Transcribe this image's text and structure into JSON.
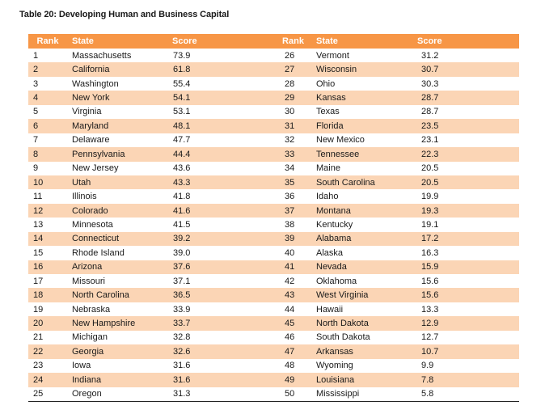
{
  "title": "Table 20: Developing Human and Business Capital",
  "columns": [
    "Rank",
    "State",
    "Score",
    "Rank",
    "State",
    "Score"
  ],
  "rows": [
    [
      "1",
      "Massachusetts",
      "73.9",
      "26",
      "Vermont",
      "31.2"
    ],
    [
      "2",
      "California",
      "61.8",
      "27",
      "Wisconsin",
      "30.7"
    ],
    [
      "3",
      "Washington",
      "55.4",
      "28",
      "Ohio",
      "30.3"
    ],
    [
      "4",
      "New York",
      "54.1",
      "29",
      "Kansas",
      "28.7"
    ],
    [
      "5",
      "Virginia",
      "53.1",
      "30",
      "Texas",
      "28.7"
    ],
    [
      "6",
      "Maryland",
      "48.1",
      "31",
      "Florida",
      "23.5"
    ],
    [
      "7",
      "Delaware",
      "47.7",
      "32",
      "New Mexico",
      "23.1"
    ],
    [
      "8",
      "Pennsylvania",
      "44.4",
      "33",
      "Tennessee",
      "22.3"
    ],
    [
      "9",
      "New Jersey",
      "43.6",
      "34",
      "Maine",
      "20.5"
    ],
    [
      "10",
      "Utah",
      "43.3",
      "35",
      "South Carolina",
      "20.5"
    ],
    [
      "11",
      "Illinois",
      "41.8",
      "36",
      "Idaho",
      "19.9"
    ],
    [
      "12",
      "Colorado",
      "41.6",
      "37",
      "Montana",
      "19.3"
    ],
    [
      "13",
      "Minnesota",
      "41.5",
      "38",
      "Kentucky",
      "19.1"
    ],
    [
      "14",
      "Connecticut",
      "39.2",
      "39",
      "Alabama",
      "17.2"
    ],
    [
      "15",
      "Rhode Island",
      "39.0",
      "40",
      "Alaska",
      "16.3"
    ],
    [
      "16",
      "Arizona",
      "37.6",
      "41",
      "Nevada",
      "15.9"
    ],
    [
      "17",
      "Missouri",
      "37.1",
      "42",
      "Oklahoma",
      "15.6"
    ],
    [
      "18",
      "North Carolina",
      "36.5",
      "43",
      "West Virginia",
      "15.6"
    ],
    [
      "19",
      "Nebraska",
      "33.9",
      "44",
      "Hawaii",
      "13.3"
    ],
    [
      "20",
      "New Hampshire",
      "33.7",
      "45",
      "North Dakota",
      "12.9"
    ],
    [
      "21",
      "Michigan",
      "32.8",
      "46",
      "South Dakota",
      "12.7"
    ],
    [
      "22",
      "Georgia",
      "32.6",
      "47",
      "Arkansas",
      "10.7"
    ],
    [
      "23",
      "Iowa",
      "31.6",
      "48",
      "Wyoming",
      "9.9"
    ],
    [
      "24",
      "Indiana",
      "31.6",
      "49",
      "Louisiana",
      "7.8"
    ],
    [
      "25",
      "Oregon",
      "31.3",
      "50",
      "Mississippi",
      "5.8"
    ]
  ],
  "colors": {
    "header": "#f79646",
    "alt_row": "#fbd5b5"
  }
}
